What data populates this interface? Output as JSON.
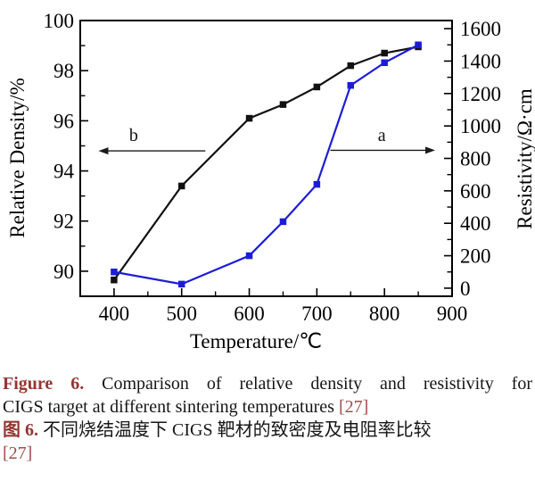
{
  "chart_data": {
    "type": "line",
    "title": "",
    "xlabel": "Temperature/℃",
    "ylabel_left": "Relative Density/%",
    "ylabel_right": "Resistivity/Ω·cm",
    "x_range": [
      350,
      900
    ],
    "x_major_ticks": [
      400,
      500,
      600,
      700,
      800,
      900
    ],
    "x_minor_step": 50,
    "y_left_range": [
      89,
      100
    ],
    "y_left_major_ticks": [
      90,
      92,
      94,
      96,
      98,
      100
    ],
    "y_left_minor_step": 1,
    "y_right_range": [
      -50,
      1650
    ],
    "y_right_major_ticks": [
      0,
      200,
      400,
      600,
      800,
      1000,
      1200,
      1400,
      1600
    ],
    "y_right_minor_step": 100,
    "grid": false,
    "legend": "none",
    "axis_color": "#000000",
    "series": [
      {
        "name": "b",
        "label": "Relative density (curve b, left axis)",
        "axis": "left",
        "color": "#111111",
        "marker": "square",
        "x": [
          400,
          500,
          600,
          650,
          700,
          750,
          800,
          850
        ],
        "values": [
          89.65,
          93.4,
          96.1,
          96.65,
          97.35,
          98.2,
          98.7,
          98.95
        ]
      },
      {
        "name": "a",
        "label": "Resistivity (curve a, right axis)",
        "axis": "right",
        "color": "#1c1cd8",
        "marker": "square",
        "x": [
          400,
          500,
          600,
          650,
          700,
          750,
          800,
          850
        ],
        "values": [
          100,
          25,
          200,
          410,
          640,
          1250,
          1390,
          1500
        ]
      }
    ],
    "annotations": [
      {
        "label": "b",
        "axis": "left",
        "y": 94.8,
        "x_tail": 535,
        "x_head": 377,
        "label_x": 429,
        "label_y": 95.45
      },
      {
        "label": "a",
        "axis": "right",
        "y": 850,
        "x_tail": 720,
        "x_head": 875,
        "label_x": 796,
        "label_y": 945
      }
    ]
  },
  "caption": {
    "line1_prefix": "Figure 6.",
    "line1_rest": "Comparison of relative density and resistivity for",
    "line2_text": "CIGS target at different sintering temperatures",
    "line2_ref": "[27]",
    "line3_prefix": "图 6.",
    "line3_rest": "不同烧结温度下 CIGS 靶材的致密度及电阻率比较",
    "line4_ref": "[27]",
    "prefix_color": "#943634",
    "ref_color": "#A24D4A"
  }
}
